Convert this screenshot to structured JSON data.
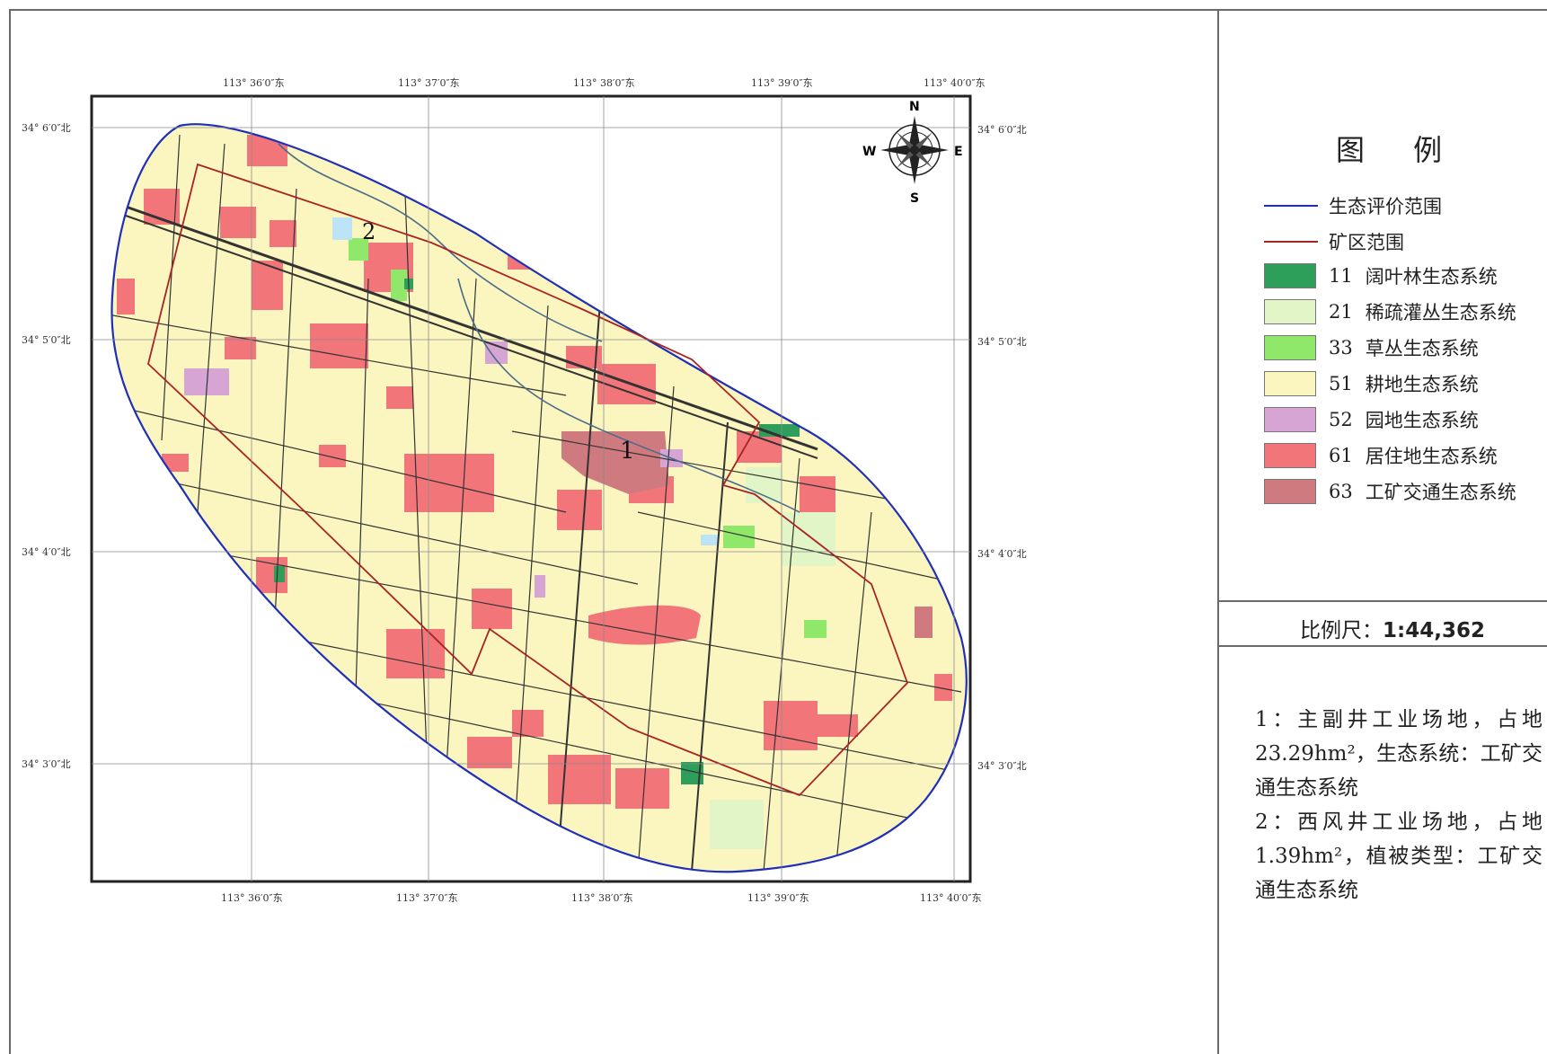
{
  "map": {
    "lon_top": [
      "113° 36′0″东",
      "113° 37′0″东",
      "113° 38′0″东",
      "113° 39′0″东",
      "113° 40′0″东"
    ],
    "lon_bottom": [
      "113° 36′0″东",
      "113° 37′0″东",
      "113° 38′0″东",
      "113° 39′0″东",
      "113° 40′0″东"
    ],
    "lat_left": [
      "34° 6′0″北",
      "34° 5′0″北",
      "34° 4′0″北",
      "34° 3′0″北"
    ],
    "lat_right": [
      "34° 6′0″北",
      "34° 5′0″北",
      "34° 4′0″北",
      "34° 3′0″北"
    ],
    "site_labels": [
      "1",
      "2"
    ],
    "compass": {
      "n": "N",
      "s": "S",
      "e": "E",
      "w": "W"
    }
  },
  "legend": {
    "title": "图 例",
    "lines": [
      {
        "label": "生态评价范围",
        "color": "#1f2fb8"
      },
      {
        "label": "矿区范围",
        "color": "#a82424"
      }
    ],
    "classes": [
      {
        "code": "11",
        "label": "阔叶林生态系统",
        "color": "#2e9e5b"
      },
      {
        "code": "21",
        "label": "稀疏灌丛生态系统",
        "color": "#e2f5c6"
      },
      {
        "code": "33",
        "label": "草丛生态系统",
        "color": "#8fe86a"
      },
      {
        "code": "51",
        "label": "耕地生态系统",
        "color": "#fbf6bf"
      },
      {
        "code": "52",
        "label": "园地生态系统",
        "color": "#d7a5d3"
      },
      {
        "code": "61",
        "label": "居住地生态系统",
        "color": "#f2757a"
      },
      {
        "code": "63",
        "label": "工矿交通生态系统",
        "color": "#cf7a7e"
      }
    ]
  },
  "scale": {
    "label": "比例尺：",
    "value": "1:44,362"
  },
  "notes": [
    "1：主副井工业场地，占地23.29hm²，生态系统：工矿交通生态系统",
    "2：西风井工业场地，占地1.39hm²，植被类型：工矿交通生态系统"
  ]
}
